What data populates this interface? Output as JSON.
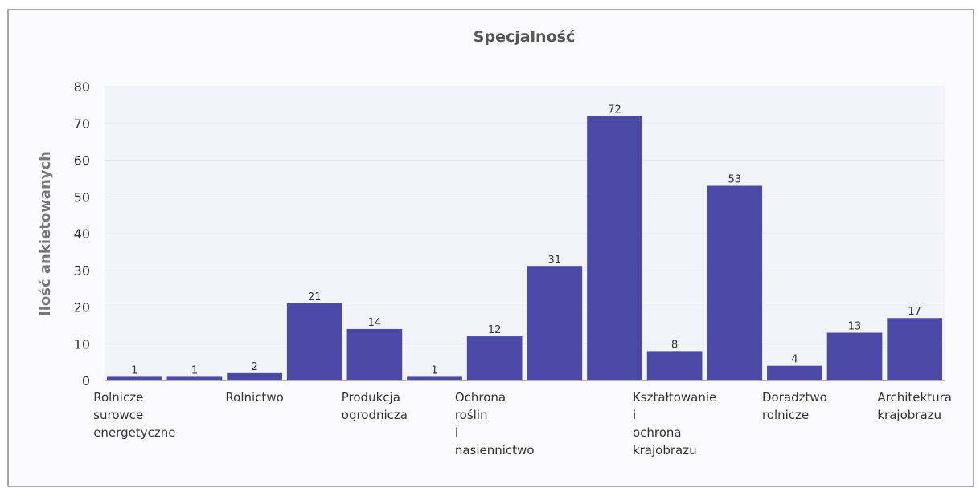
{
  "chart_data": {
    "type": "bar",
    "title": "Specjalność",
    "y_label": "Ilość ankietowanych",
    "categories": [
      "Rolnicze surowce energetyczne",
      null,
      "Rolnictwo",
      null,
      "Produkcja ogrodnicza",
      null,
      "Ochrona roślin i nasiennictwo",
      null,
      null,
      "Kształtowanie i ochrona krajobrazu",
      null,
      "Doradztwo rolnicze",
      null,
      "Architektura krajobrazu"
    ],
    "values": [
      1,
      1,
      2,
      21,
      14,
      1,
      12,
      31,
      72,
      8,
      53,
      4,
      13,
      17
    ],
    "color": "#4a4aa6",
    "ylim": [
      0,
      80
    ],
    "yticks": [
      0,
      10,
      20,
      30,
      40,
      50,
      60,
      70,
      80
    ],
    "grid": true
  }
}
